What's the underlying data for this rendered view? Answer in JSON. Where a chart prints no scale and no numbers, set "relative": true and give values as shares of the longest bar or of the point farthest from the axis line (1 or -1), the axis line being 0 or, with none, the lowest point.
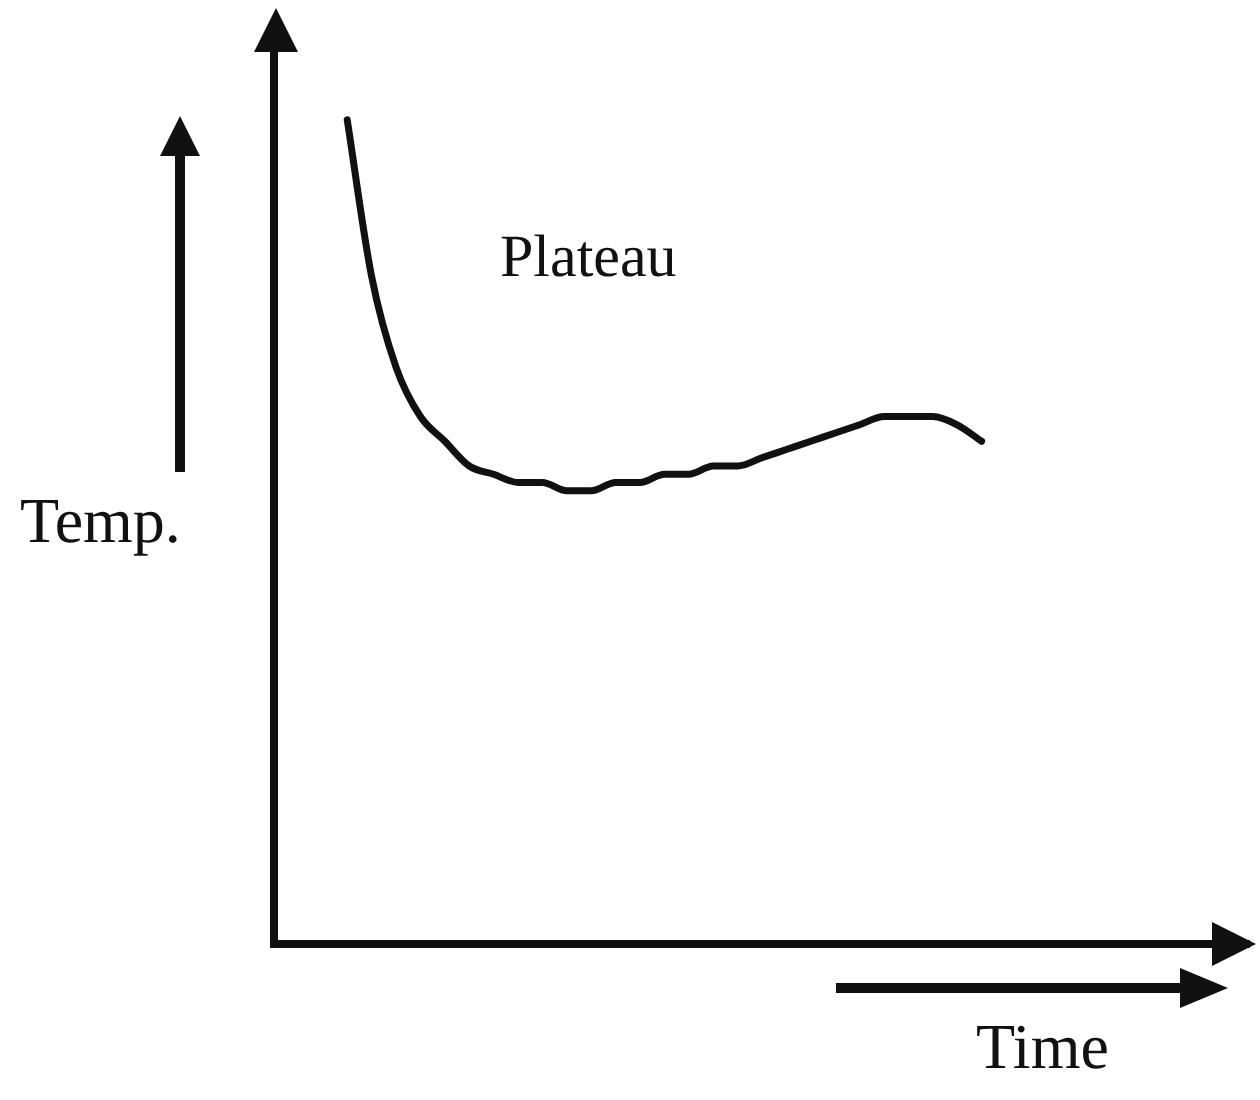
{
  "chart_data": {
    "type": "line",
    "relative": true,
    "xlabel": "Time",
    "ylabel": "Temp.",
    "annotations": [
      "Plateau"
    ],
    "color": "#111111",
    "categories": [
      null,
      null,
      null,
      null,
      null,
      null,
      null,
      null,
      null,
      null,
      null,
      null,
      null,
      null,
      null,
      null,
      null,
      null,
      null,
      null,
      null,
      null,
      null,
      null,
      null,
      null,
      null,
      null,
      null,
      null,
      null,
      null,
      null,
      null,
      null,
      null,
      null,
      null,
      null,
      null,
      null
    ],
    "values": [
      null,
      null,
      null,
      1,
      0.81,
      0.7,
      0.64,
      0.61,
      0.58,
      0.57,
      0.56,
      0.56,
      0.55,
      0.55,
      0.56,
      0.56,
      0.57,
      0.57,
      0.58,
      0.58,
      0.59,
      0.6,
      0.61,
      0.62,
      0.63,
      0.64,
      0.64,
      0.64,
      0.63,
      0.61,
      null,
      null,
      null,
      null,
      null,
      null,
      null,
      null,
      null,
      null,
      null
    ]
  }
}
